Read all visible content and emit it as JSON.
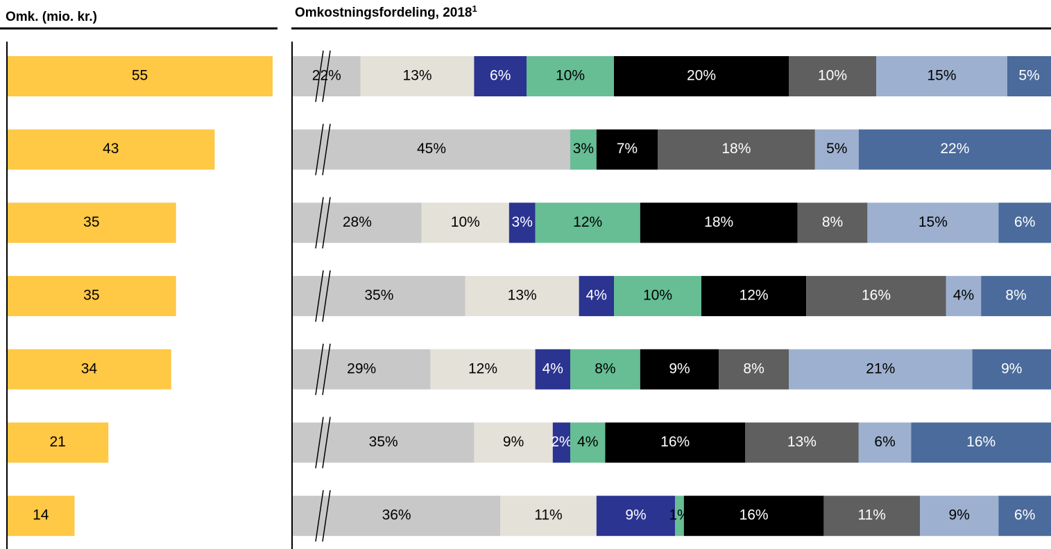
{
  "chart_data": [
    {
      "type": "hbar",
      "title": "Omk. (mio. kr.)",
      "values": [
        55,
        43,
        35,
        35,
        34,
        21,
        14
      ],
      "color": "#ffc845",
      "xlim": [
        0,
        55
      ]
    },
    {
      "type": "stacked_hbar",
      "title": "Omkostningsfordeling, 2018",
      "title_footnote": "1",
      "series": [
        {
          "color": "#c8c8c8",
          "values": [
            22,
            45,
            28,
            35,
            29,
            35,
            36
          ],
          "value_labels": [
            "22%",
            "45%",
            "28%",
            "35%",
            "29%",
            "35%",
            "36%"
          ]
        },
        {
          "color": "#e4e1d8",
          "values": [
            13,
            null,
            10,
            13,
            12,
            9,
            11
          ],
          "value_labels": [
            "13%",
            null,
            "10%",
            "13%",
            "12%",
            "9%",
            "11%"
          ]
        },
        {
          "color": "#2b3490",
          "values": [
            6,
            null,
            3,
            4,
            4,
            2,
            9
          ],
          "value_labels": [
            "6%",
            null,
            "3%",
            "4%",
            "4%",
            "2%",
            "9%"
          ]
        },
        {
          "color": "#67bd94",
          "values": [
            10,
            3,
            12,
            10,
            8,
            4,
            1
          ],
          "value_labels": [
            "10%",
            "3%",
            "12%",
            "10%",
            "8%",
            "4%",
            "1%"
          ]
        },
        {
          "color": "#000000",
          "values": [
            20,
            7,
            18,
            12,
            9,
            16,
            16
          ],
          "value_labels": [
            "20%",
            "7%",
            "18%",
            "12%",
            "9%",
            "16%",
            "16%"
          ]
        },
        {
          "color": "#5f5f5f",
          "values": [
            10,
            18,
            8,
            16,
            8,
            13,
            11
          ],
          "value_labels": [
            "10%",
            "18%",
            "8%",
            "16%",
            "8%",
            "13%",
            "11%"
          ]
        },
        {
          "color": "#9db0cf",
          "values": [
            15,
            5,
            15,
            4,
            21,
            6,
            9
          ],
          "value_labels": [
            "15%",
            "5%",
            "15%",
            "4%",
            "21%",
            "6%",
            "9%"
          ]
        },
        {
          "color": "#4a6b9b",
          "values": [
            5,
            22,
            6,
            8,
            9,
            16,
            6
          ],
          "value_labels": [
            "5%",
            "22%",
            "6%",
            "8%",
            "9%",
            "16%",
            "6%"
          ]
        }
      ]
    }
  ]
}
